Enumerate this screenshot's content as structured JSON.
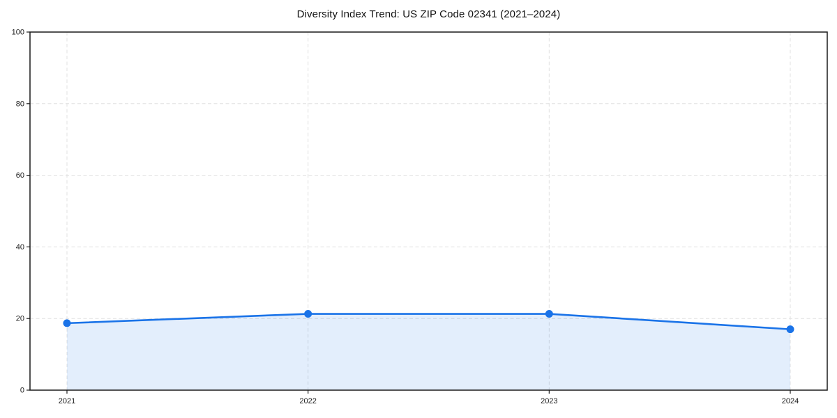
{
  "chart_data": {
    "type": "area",
    "title": "Diversity Index Trend: US ZIP Code 02341 (2021–2024)",
    "categories": [
      "2021",
      "2022",
      "2023",
      "2024"
    ],
    "series": [
      {
        "name": "Diversity Index",
        "values": [
          18.7,
          21.3,
          21.3,
          17.0
        ]
      }
    ],
    "xlabel": "",
    "ylabel": "",
    "ylim": [
      0,
      100
    ],
    "yticks": [
      0,
      20,
      40,
      60,
      80,
      100
    ],
    "grid": "dashed, both axes",
    "legend": "none",
    "colors": {
      "line": "#1a73e8",
      "marker": "#1a73e8",
      "fill": "#1a73e8",
      "fill_opacity": "0.12",
      "gridline": "#e0e0e0",
      "spine": "#1a1a1a",
      "tick_text": "#1a1a1a",
      "background": "#ffffff"
    }
  }
}
